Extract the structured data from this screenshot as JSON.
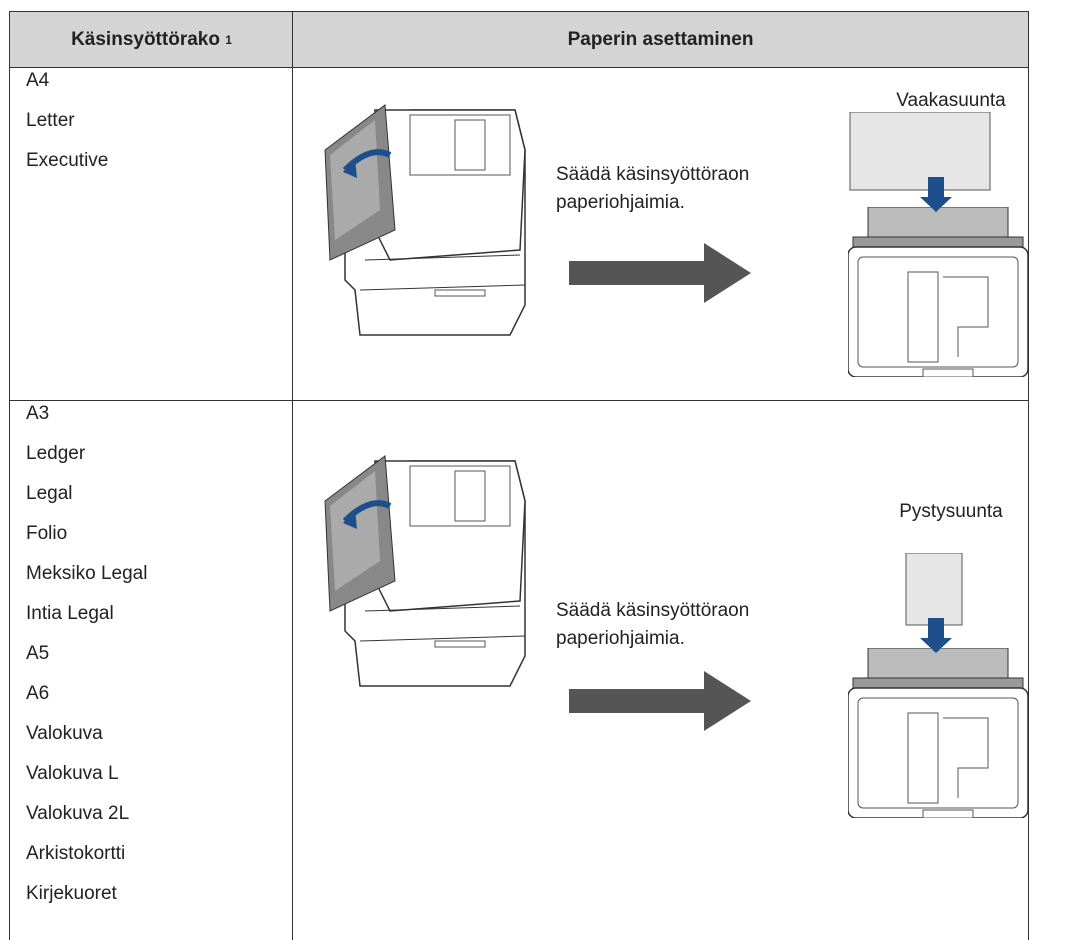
{
  "header": {
    "columns": [
      {
        "text": "Käsinsyöttörako",
        "sup": "1"
      },
      {
        "text": "Paperin asettaminen"
      }
    ]
  },
  "rows": [
    {
      "sizes": [
        "A4",
        "Letter",
        "Executive"
      ],
      "instruction": "Säädä käsinsyöttöraon paperiohjaimia.",
      "orientation": "Vaakasuunta"
    },
    {
      "sizes": [
        "A3",
        "Ledger",
        "Legal",
        "Folio",
        "Meksiko Legal",
        "Intia Legal",
        "A5",
        "A6",
        "Valokuva",
        "Valokuva L",
        "Valokuva 2L",
        "Arkistokortti",
        "Kirjekuoret"
      ],
      "instruction": "Säädä käsinsyöttöraon paperiohjaimia.",
      "orientation": "Pystysuunta"
    }
  ]
}
